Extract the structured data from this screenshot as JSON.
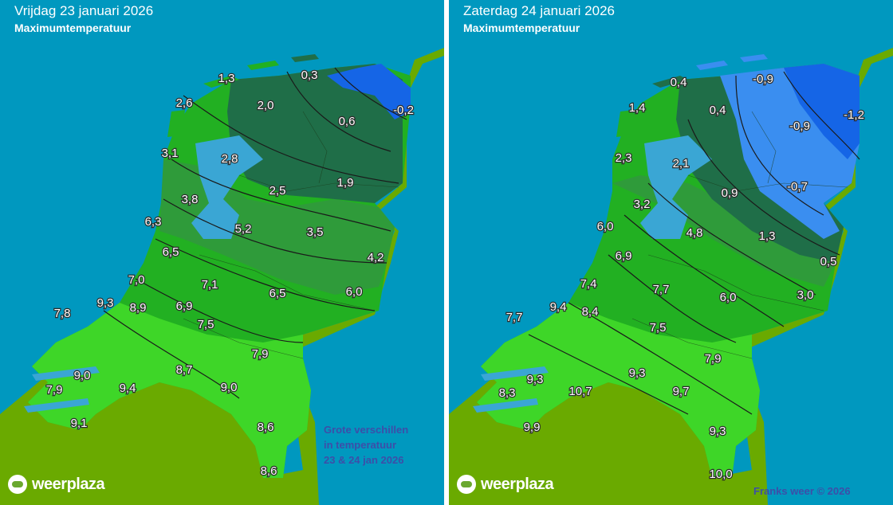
{
  "panels": [
    {
      "date": "Vrijdag 23 januari 2026",
      "subtitle": "Maximumtemperatuur",
      "temps": [
        "1,3",
        "0,3",
        "2,6",
        "2,0",
        "0,6",
        "-0,2",
        "3,1",
        "2,8",
        "1,9",
        "3,8",
        "2,5",
        "6,3",
        "5,2",
        "3,5",
        "6,5",
        "4,2",
        "7,0",
        "7,1",
        "6,5",
        "6,0",
        "7,8",
        "9,3",
        "8,9",
        "6,9",
        "7,5",
        "7,9",
        "9,0",
        "8,7",
        "7,9",
        "9,4",
        "9,0",
        "9,1",
        "8,6",
        "8,6"
      ],
      "logo": "weerplaza",
      "note": [
        "Grote verschillen",
        "in temperatuur",
        "23 & 24 jan 2026"
      ]
    },
    {
      "date": "Zaterdag 24 januari 2026",
      "subtitle": "Maximumtemperatuur",
      "temps": [
        "0,4",
        "-0,9",
        "1,4",
        "0,4",
        "-0,9",
        "-1,2",
        "2,3",
        "2,1",
        "0,9",
        "-0,7",
        "3,2",
        "6,0",
        "4,8",
        "1,3",
        "6,9",
        "0,5",
        "7,4",
        "7,7",
        "6,0",
        "3,0",
        "7,7",
        "9,4",
        "8,4",
        "7,5",
        "7,9",
        "9,3",
        "9,3",
        "10,7",
        "8,3",
        "9,7",
        "9,9",
        "9,3",
        "10,0"
      ],
      "logo": "weerplaza",
      "copyright": "Franks weer © 2026"
    }
  ],
  "colors": {
    "sea": "#0098bf",
    "land": "#6aaa00",
    "cold_blue": "#1565e6",
    "light_blue": "#3a8ef0",
    "dark_green": "#1f6e48",
    "mid_green": "#2f9b3a",
    "green": "#22b022",
    "bright_green": "#3ed628",
    "water": "#3aa6d4"
  },
  "icons": [
    "weerplaza-cloud-icon"
  ]
}
